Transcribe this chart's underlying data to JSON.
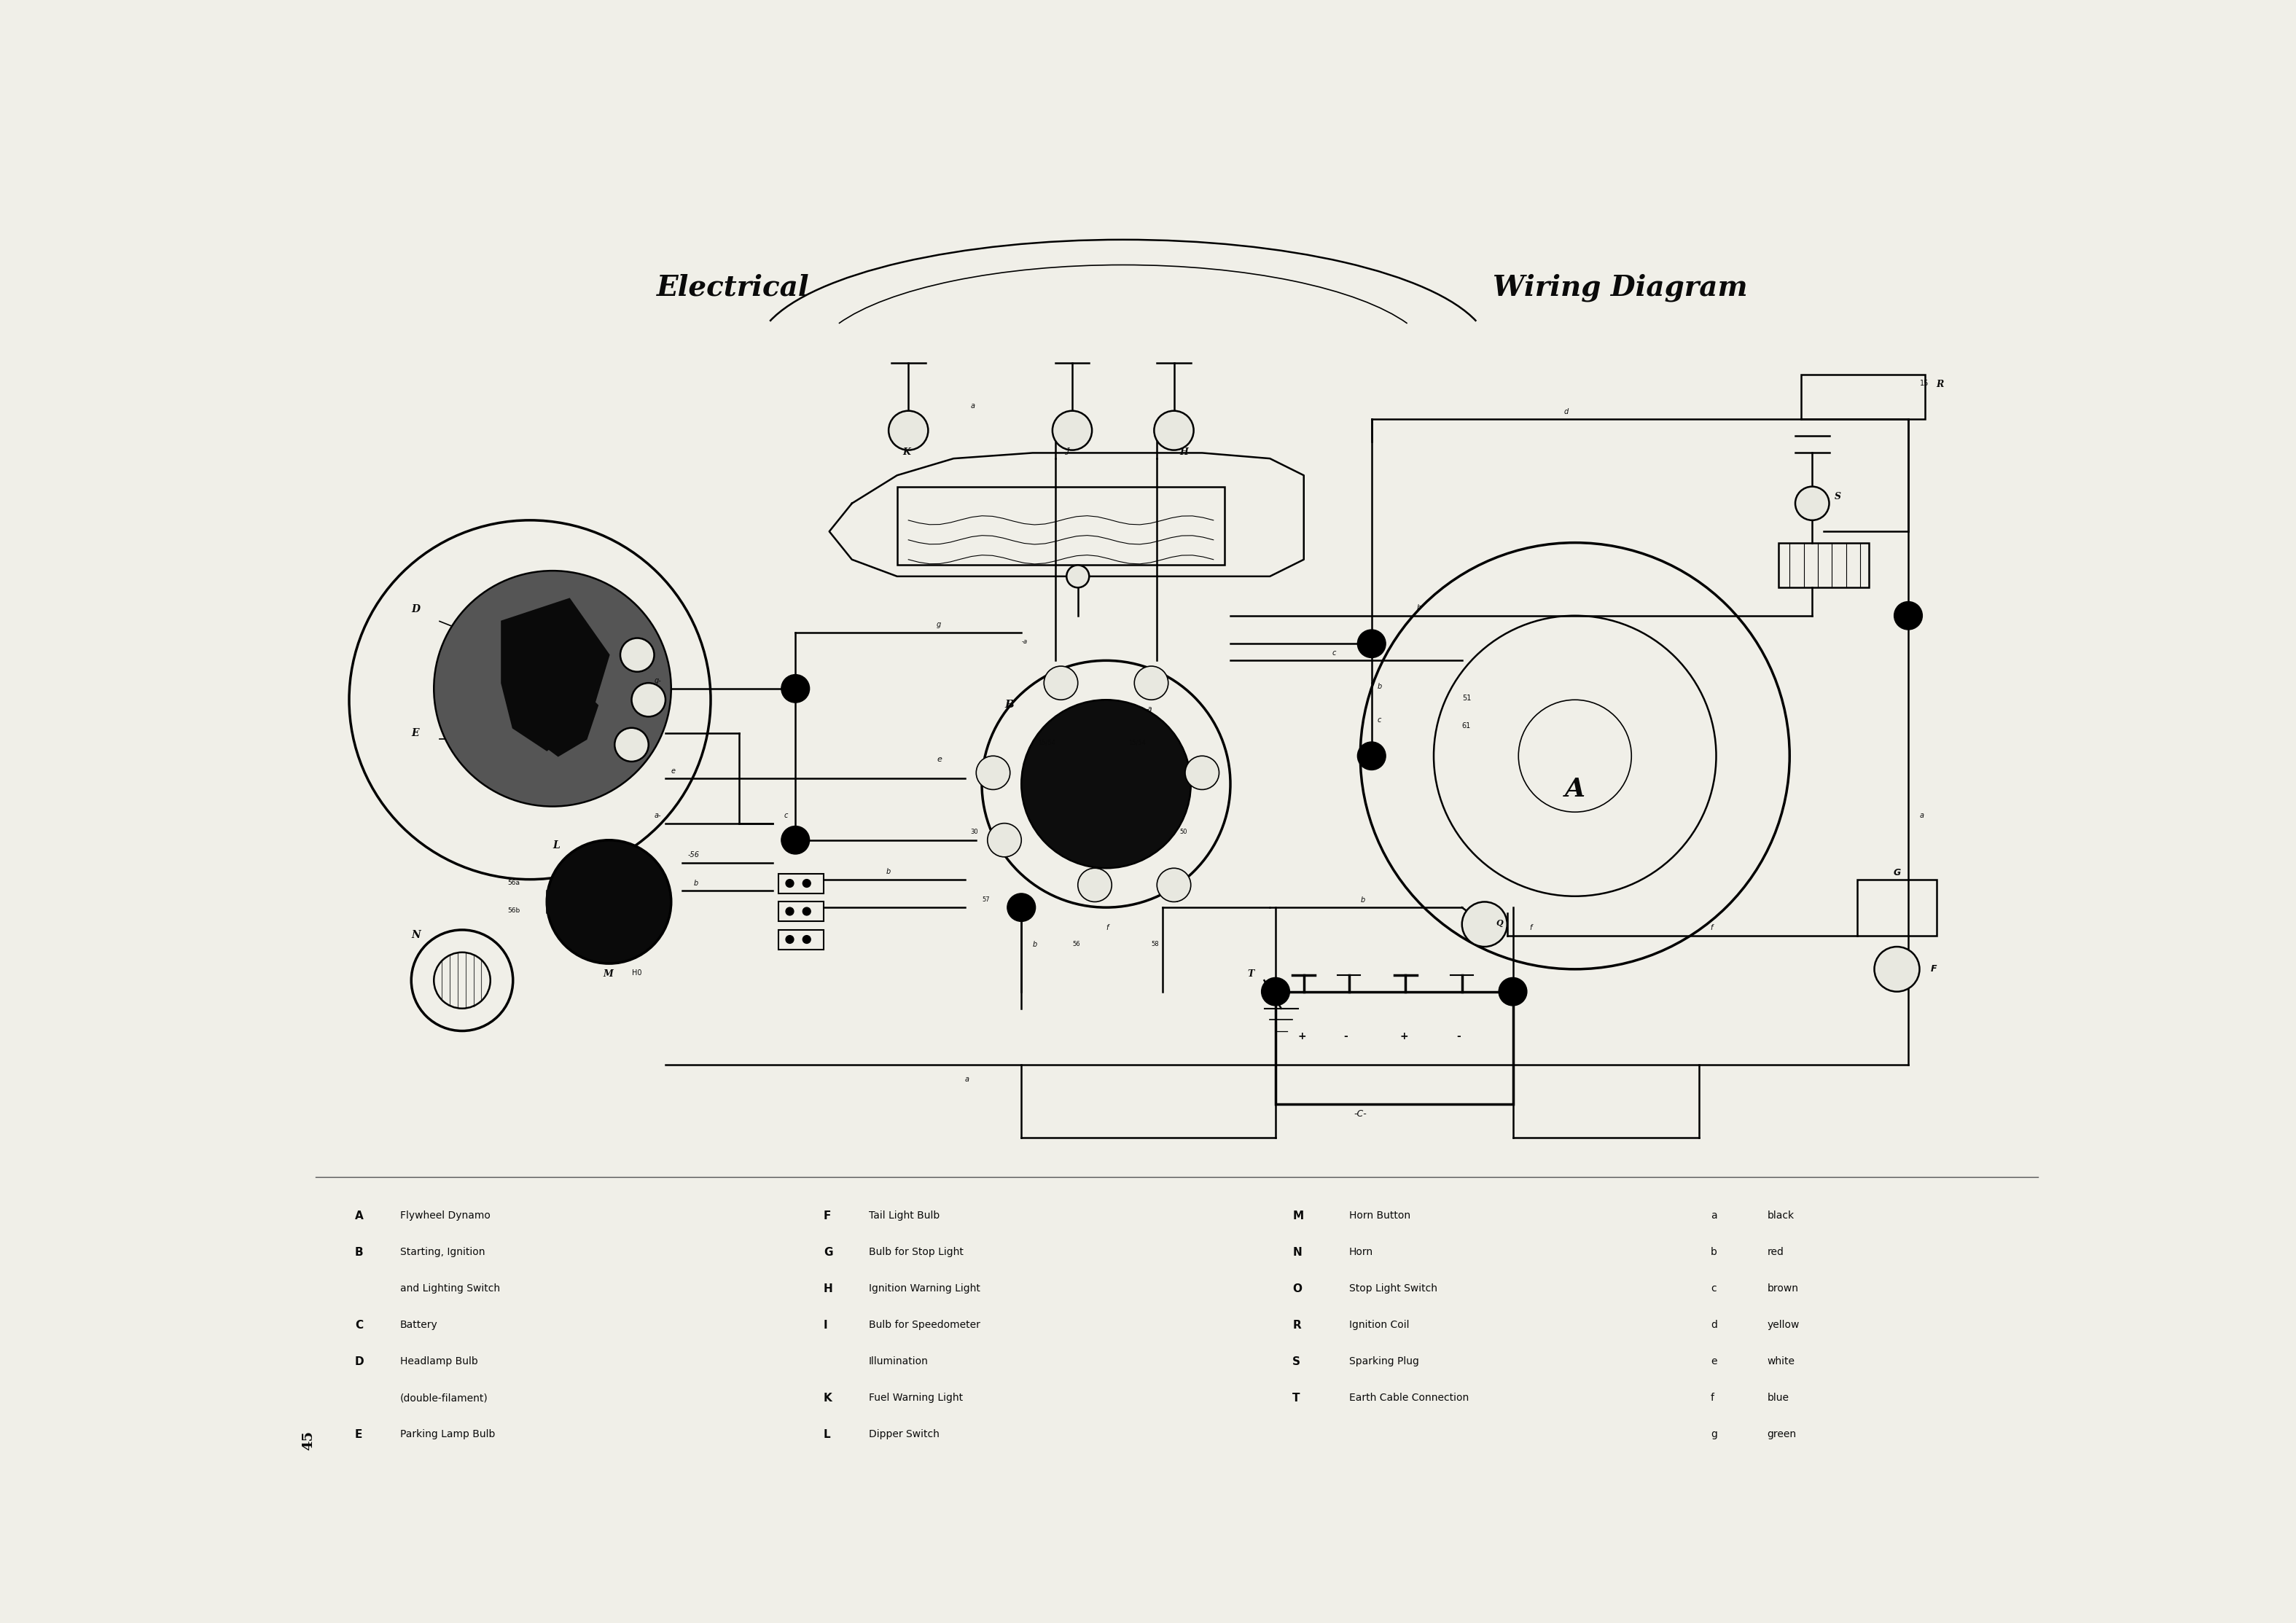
{
  "title_left": "Electrical",
  "title_right": "Wiring Diagram",
  "bg_color": "#f0efe8",
  "text_color": "#0a0a0a",
  "page_num": "45",
  "legend_col1": [
    [
      "A",
      "Flywheel Dynamo"
    ],
    [
      "B",
      "Starting, Ignition"
    ],
    [
      "",
      "and Lighting Switch"
    ],
    [
      "C",
      "Battery"
    ],
    [
      "D",
      "Headlamp Bulb"
    ],
    [
      "",
      "(double-filament)"
    ],
    [
      "E",
      "Parking Lamp Bulb"
    ]
  ],
  "legend_col2": [
    [
      "F",
      "Tail Light Bulb"
    ],
    [
      "G",
      "Bulb for Stop Light"
    ],
    [
      "H",
      "Ignition Warning Light"
    ],
    [
      "I",
      "Bulb for Speedometer"
    ],
    [
      "",
      "Illumination"
    ],
    [
      "K",
      "Fuel Warning Light"
    ],
    [
      "L",
      "Dipper Switch"
    ]
  ],
  "legend_col3": [
    [
      "M",
      "Horn Button"
    ],
    [
      "N",
      "Horn"
    ],
    [
      "O",
      "Stop Light Switch"
    ],
    [
      "R",
      "Ignition Coil"
    ],
    [
      "S",
      "Sparking Plug"
    ],
    [
      "T",
      "Earth Cable Connection"
    ]
  ],
  "legend_col4": [
    [
      "a",
      "black"
    ],
    [
      "b",
      "red"
    ],
    [
      "c",
      "brown"
    ],
    [
      "d",
      "yellow"
    ],
    [
      "e",
      "white"
    ],
    [
      "f",
      "blue"
    ],
    [
      "g",
      "green"
    ]
  ]
}
